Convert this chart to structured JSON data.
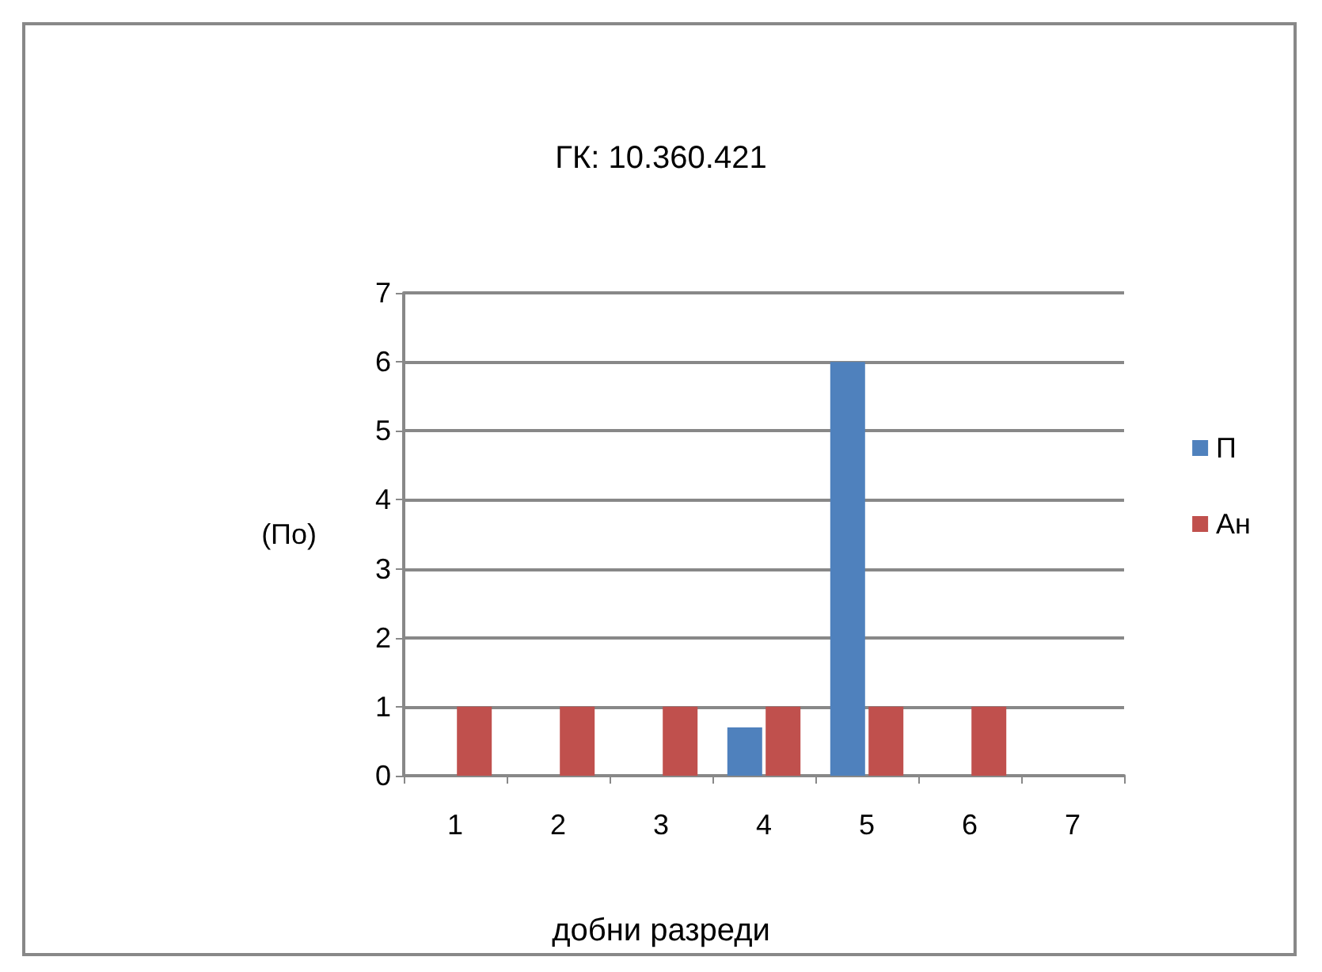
{
  "chart_data": {
    "type": "bar",
    "title": "ГК: 10.360.421",
    "xlabel": "добни разреди",
    "ylabel": "(По)",
    "categories": [
      "1",
      "2",
      "3",
      "4",
      "5",
      "6",
      "7"
    ],
    "series": [
      {
        "name": "П",
        "color": "#4f81bd",
        "values": [
          0,
          0,
          0,
          0.7,
          6,
          0,
          0
        ]
      },
      {
        "name": "Ан",
        "color": "#c0504d",
        "values": [
          1,
          1,
          1,
          1,
          1,
          1,
          0
        ]
      }
    ],
    "ylim": [
      0,
      7
    ],
    "yticks": [
      0,
      1,
      2,
      3,
      4,
      5,
      6,
      7
    ],
    "grid": "y",
    "legend": "right"
  }
}
